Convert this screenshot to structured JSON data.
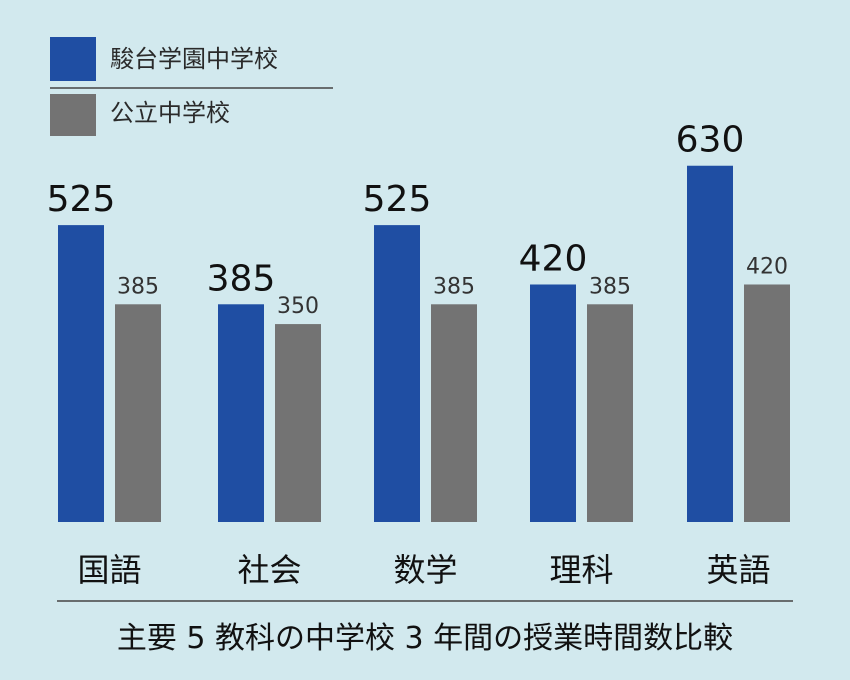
{
  "chart_data": {
    "type": "bar",
    "categories": [
      "国語",
      "社会",
      "数学",
      "理科",
      "英語"
    ],
    "series": [
      {
        "name": "駿台学園中学校",
        "values": [
          525,
          385,
          525,
          420,
          630
        ],
        "color": "#1f4ea3"
      },
      {
        "name": "公立中学校",
        "values": [
          385,
          350,
          385,
          385,
          420
        ],
        "color": "#737373"
      }
    ],
    "title": "主要 5 教科の中学校 3 年間の授業時間数比較",
    "xlabel": "",
    "ylabel": "",
    "ylim": [
      0,
      630
    ],
    "grid": false,
    "legend_position": "top-left"
  },
  "colors": {
    "background": "#d2e9ee",
    "divider": "#444444"
  }
}
